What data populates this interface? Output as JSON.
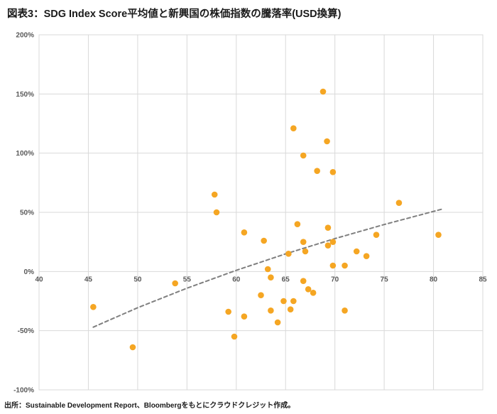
{
  "title": "図表3：SDG Index Score平均値と新興国の株価指数の騰落率(USD換算)",
  "source": "出所：Sustainable Development Report、Bloombergをもとにクラウドクレジット作成。",
  "chart_data": {
    "type": "scatter",
    "title": "図表3：SDG Index Score平均値と新興国の株価指数の騰落率(USD換算)",
    "xlabel": "",
    "ylabel": "",
    "xlim": [
      40,
      85
    ],
    "ylim": [
      -100,
      200
    ],
    "x_ticks": [
      40,
      45,
      50,
      55,
      60,
      65,
      70,
      75,
      80,
      85
    ],
    "y_ticks": [
      200,
      150,
      100,
      50,
      0,
      -50,
      -100
    ],
    "y_tick_suffix": "%",
    "grid": true,
    "legend_position": "none",
    "point_color": "#F5A623",
    "trend_color": "#7f7f7f",
    "grid_color": "#d9d9d9",
    "points": [
      [
        45.5,
        -30
      ],
      [
        49.5,
        -64
      ],
      [
        53.8,
        -10
      ],
      [
        57.8,
        65
      ],
      [
        58.0,
        50
      ],
      [
        59.2,
        -34
      ],
      [
        59.8,
        -55
      ],
      [
        60.8,
        33
      ],
      [
        60.8,
        -38
      ],
      [
        62.5,
        -20
      ],
      [
        62.8,
        26
      ],
      [
        63.2,
        2
      ],
      [
        63.5,
        -5
      ],
      [
        63.5,
        -33
      ],
      [
        64.2,
        -43
      ],
      [
        64.8,
        -25
      ],
      [
        65.3,
        15
      ],
      [
        65.5,
        -32
      ],
      [
        65.8,
        121
      ],
      [
        65.8,
        -25
      ],
      [
        66.2,
        40
      ],
      [
        66.8,
        98
      ],
      [
        66.8,
        25
      ],
      [
        66.8,
        -8
      ],
      [
        67.0,
        17
      ],
      [
        67.3,
        -15
      ],
      [
        67.8,
        -18
      ],
      [
        68.2,
        85
      ],
      [
        68.8,
        152
      ],
      [
        69.2,
        110
      ],
      [
        69.3,
        37
      ],
      [
        69.3,
        22
      ],
      [
        69.8,
        84
      ],
      [
        69.8,
        25
      ],
      [
        69.8,
        5
      ],
      [
        71.0,
        5
      ],
      [
        71.0,
        -33
      ],
      [
        72.2,
        17
      ],
      [
        73.2,
        13
      ],
      [
        74.2,
        31
      ],
      [
        76.5,
        58
      ],
      [
        80.5,
        31
      ]
    ],
    "trendline": {
      "style": "dashed",
      "points": [
        [
          45.5,
          -47
        ],
        [
          50,
          -30.6
        ],
        [
          55,
          -14.1
        ],
        [
          60,
          1
        ],
        [
          65,
          14.9
        ],
        [
          70,
          27.8
        ],
        [
          75,
          39.7
        ],
        [
          81,
          53
        ]
      ]
    }
  }
}
